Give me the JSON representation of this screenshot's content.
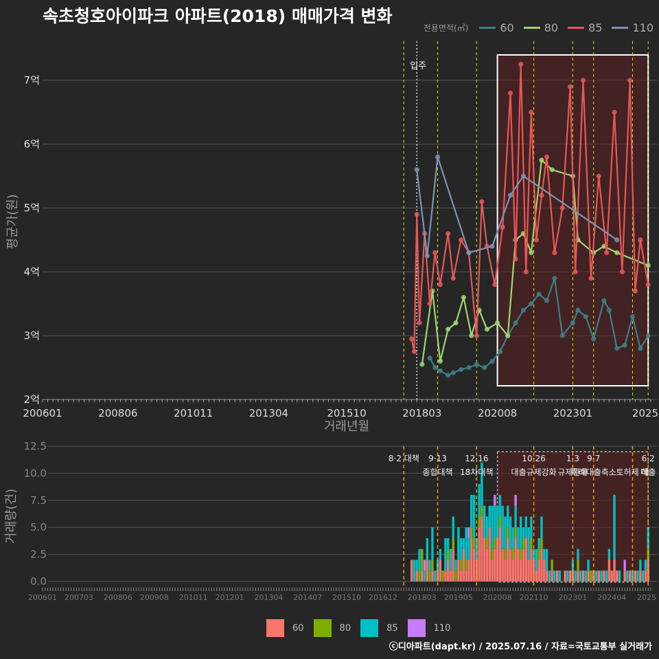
{
  "title": "속초청호아이파크 아파트(2018) 매매가격 변화",
  "legend": {
    "title": "전용면적(㎡)",
    "items": [
      {
        "label": "60",
        "line_color": "#3e7f86",
        "bar_color": "#f8766d"
      },
      {
        "label": "80",
        "line_color": "#9fd672",
        "bar_color": "#7cae00"
      },
      {
        "label": "85",
        "line_color": "#e85757",
        "bar_color": "#00bfc4"
      },
      {
        "label": "110",
        "line_color": "#7f92b4",
        "bar_color": "#c77cff"
      }
    ]
  },
  "credit": "ⓒ디아파트(dapt.kr) / 2025.07.16 / 자료=국토교통부 실거래가",
  "chart_data": [
    {
      "type": "line",
      "ylabel": "평균가(원)",
      "xlabel": "거래년월",
      "yticks": [
        "2억",
        "3억",
        "4억",
        "5억",
        "6억",
        "7억"
      ],
      "ylim": [
        2,
        7.5
      ],
      "xlim": [
        "2006-01",
        "2025-07"
      ],
      "xticks": [
        "200601",
        "200806",
        "201011",
        "201304",
        "201510",
        "201803",
        "202008",
        "202301",
        "2025"
      ],
      "move_in_label": "입주",
      "move_in": "2018-01",
      "highlight_range": [
        "2020-08",
        "2025-06"
      ],
      "policy_lines": [
        "2017-08",
        "2018-09",
        "2019-12",
        "2021-10",
        "2023-01",
        "2023-09",
        "2024-12",
        "2025-06"
      ],
      "series": [
        {
          "name": "60",
          "points": [
            [
              "2018-06",
              2.65
            ],
            [
              "2018-08",
              2.5
            ],
            [
              "2018-10",
              2.45
            ],
            [
              "2019-01",
              2.38
            ],
            [
              "2019-03",
              2.42
            ],
            [
              "2019-06",
              2.47
            ],
            [
              "2019-09",
              2.5
            ],
            [
              "2019-12",
              2.55
            ],
            [
              "2020-03",
              2.5
            ],
            [
              "2020-06",
              2.6
            ],
            [
              "2020-09",
              2.75
            ],
            [
              "2020-12",
              3.0
            ],
            [
              "2021-03",
              3.2
            ],
            [
              "2021-06",
              3.4
            ],
            [
              "2021-09",
              3.5
            ],
            [
              "2021-12",
              3.65
            ],
            [
              "2022-03",
              3.55
            ],
            [
              "2022-06",
              3.9
            ],
            [
              "2022-09",
              3.0
            ],
            [
              "2023-01",
              3.2
            ],
            [
              "2023-03",
              3.4
            ],
            [
              "2023-06",
              3.3
            ],
            [
              "2023-09",
              2.95
            ],
            [
              "2024-01",
              3.55
            ],
            [
              "2024-03",
              3.4
            ],
            [
              "2024-06",
              2.8
            ],
            [
              "2024-09",
              2.85
            ],
            [
              "2024-12",
              3.3
            ],
            [
              "2025-03",
              2.8
            ],
            [
              "2025-06",
              3.0
            ]
          ]
        },
        {
          "name": "80",
          "points": [
            [
              "2018-03",
              2.55
            ],
            [
              "2018-07",
              3.7
            ],
            [
              "2018-10",
              2.6
            ],
            [
              "2019-01",
              3.1
            ],
            [
              "2019-04",
              3.2
            ],
            [
              "2019-07",
              3.6
            ],
            [
              "2019-10",
              3.0
            ],
            [
              "2020-01",
              3.4
            ],
            [
              "2020-04",
              3.1
            ],
            [
              "2020-08",
              3.2
            ],
            [
              "2020-12",
              3.0
            ],
            [
              "2021-03",
              4.5
            ],
            [
              "2021-06",
              4.6
            ],
            [
              "2021-09",
              4.3
            ],
            [
              "2022-01",
              5.75
            ],
            [
              "2022-05",
              5.6
            ],
            [
              "2023-01",
              5.5
            ],
            [
              "2023-03",
              4.5
            ],
            [
              "2023-09",
              4.3
            ],
            [
              "2024-01",
              4.4
            ],
            [
              "2024-06",
              4.3
            ],
            [
              "2025-06",
              4.1
            ]
          ]
        },
        {
          "name": "85",
          "points": [
            [
              "2017-11",
              2.95
            ],
            [
              "2017-12",
              2.75
            ],
            [
              "2018-01",
              4.9
            ],
            [
              "2018-02",
              3.2
            ],
            [
              "2018-04",
              4.6
            ],
            [
              "2018-06",
              3.5
            ],
            [
              "2018-08",
              4.3
            ],
            [
              "2018-10",
              3.8
            ],
            [
              "2019-01",
              4.6
            ],
            [
              "2019-03",
              3.9
            ],
            [
              "2019-06",
              4.5
            ],
            [
              "2019-09",
              4.3
            ],
            [
              "2019-12",
              3.0
            ],
            [
              "2020-02",
              5.1
            ],
            [
              "2020-04",
              4.4
            ],
            [
              "2020-07",
              3.8
            ],
            [
              "2020-10",
              4.7
            ],
            [
              "2021-01",
              6.8
            ],
            [
              "2021-03",
              4.2
            ],
            [
              "2021-05",
              7.25
            ],
            [
              "2021-07",
              4.0
            ],
            [
              "2021-09",
              6.5
            ],
            [
              "2021-11",
              4.5
            ],
            [
              "2022-01",
              5.2
            ],
            [
              "2022-03",
              5.8
            ],
            [
              "2022-06",
              4.3
            ],
            [
              "2022-09",
              5.0
            ],
            [
              "2022-12",
              6.9
            ],
            [
              "2023-02",
              4.0
            ],
            [
              "2023-05",
              7.0
            ],
            [
              "2023-08",
              3.9
            ],
            [
              "2023-11",
              5.5
            ],
            [
              "2024-02",
              4.3
            ],
            [
              "2024-05",
              6.5
            ],
            [
              "2024-08",
              4.0
            ],
            [
              "2024-11",
              7.0
            ],
            [
              "2025-01",
              3.7
            ],
            [
              "2025-03",
              4.5
            ],
            [
              "2025-06",
              3.8
            ]
          ]
        },
        {
          "name": "110",
          "points": [
            [
              "2018-01",
              5.6
            ],
            [
              "2018-05",
              4.25
            ],
            [
              "2018-09",
              5.8
            ],
            [
              "2019-09",
              4.3
            ],
            [
              "2020-06",
              4.4
            ],
            [
              "2021-01",
              5.2
            ],
            [
              "2021-06",
              5.5
            ],
            [
              "2024-06",
              4.5
            ]
          ]
        }
      ]
    },
    {
      "type": "bar",
      "ylabel": "거래량(건)",
      "yticks": [
        "0.0",
        "2.5",
        "5.0",
        "7.5",
        "10.0",
        "12.5"
      ],
      "ylim": [
        0,
        12.5
      ],
      "xticks": [
        "200601",
        "200703",
        "200806",
        "200908",
        "201011",
        "201201",
        "201304",
        "201407",
        "201510",
        "201612",
        "201803",
        "201905",
        "202008",
        "202110",
        "202301",
        "202404",
        "2025"
      ],
      "policy_annotations": [
        {
          "date": "2017-08",
          "line1": "8·2 대책",
          "line2": ""
        },
        {
          "date": "2018-09",
          "line1": "9·13",
          "line2": "종합대책"
        },
        {
          "date": "2019-12",
          "line1": "12·16",
          "line2": "18차대책"
        },
        {
          "date": "2021-10",
          "line1": "10·26",
          "line2": "대출규제강화"
        },
        {
          "date": "2023-01",
          "line1": "1·3",
          "line2": "규제완화"
        },
        {
          "date": "2023-09",
          "line1": "9·7",
          "line2": "특례대출축소"
        },
        {
          "date": "2024-12",
          "line1": "",
          "line2": "토허제 해"
        },
        {
          "date": "2025-06",
          "line1": "6·2",
          "line2": "대출"
        }
      ],
      "series_totals_note": "monthly counts stacked by 전용면적",
      "monthly": [
        [
          "2017-11",
          2,
          0,
          0,
          0
        ],
        [
          "2017-12",
          0,
          0,
          2,
          0
        ],
        [
          "2018-01",
          1,
          0,
          1,
          0
        ],
        [
          "2018-02",
          0,
          1,
          2,
          0
        ],
        [
          "2018-03",
          1,
          2,
          0,
          0
        ],
        [
          "2018-04",
          0,
          0,
          1,
          1
        ],
        [
          "2018-05",
          2,
          0,
          2,
          0
        ],
        [
          "2018-06",
          0,
          1,
          1,
          0
        ],
        [
          "2018-07",
          1,
          1,
          3,
          0
        ],
        [
          "2018-08",
          0,
          0,
          1,
          0
        ],
        [
          "2018-09",
          1,
          0,
          1,
          0
        ],
        [
          "2018-10",
          2,
          0,
          1,
          0
        ],
        [
          "2018-11",
          0,
          1,
          0,
          0
        ],
        [
          "2018-12",
          1,
          0,
          3,
          0
        ],
        [
          "2019-01",
          2,
          1,
          1,
          0
        ],
        [
          "2019-02",
          1,
          0,
          2,
          0
        ],
        [
          "2019-03",
          3,
          1,
          2,
          0
        ],
        [
          "2019-04",
          0,
          1,
          1,
          0
        ],
        [
          "2019-05",
          2,
          0,
          3,
          0
        ],
        [
          "2019-06",
          1,
          1,
          2,
          0
        ],
        [
          "2019-07",
          3,
          0,
          1,
          0
        ],
        [
          "2019-08",
          1,
          1,
          3,
          0
        ],
        [
          "2019-09",
          2,
          0,
          2,
          1
        ],
        [
          "2019-10",
          4,
          1,
          3,
          0
        ],
        [
          "2019-11",
          3,
          1,
          4,
          0
        ],
        [
          "2019-12",
          2,
          0,
          2,
          0
        ],
        [
          "2020-01",
          5,
          1,
          3,
          0
        ],
        [
          "2020-02",
          6,
          1,
          4,
          0
        ],
        [
          "2020-03",
          4,
          0,
          3,
          0
        ],
        [
          "2020-04",
          3,
          1,
          2,
          0
        ],
        [
          "2020-05",
          5,
          0,
          2,
          0
        ],
        [
          "2020-06",
          2,
          1,
          4,
          0
        ],
        [
          "2020-07",
          3,
          1,
          3,
          1
        ],
        [
          "2020-08",
          4,
          0,
          3,
          0
        ],
        [
          "2020-09",
          5,
          1,
          2,
          0
        ],
        [
          "2020-10",
          3,
          0,
          4,
          0
        ],
        [
          "2020-11",
          2,
          1,
          3,
          0
        ],
        [
          "2020-12",
          4,
          1,
          2,
          0
        ],
        [
          "2021-01",
          3,
          0,
          3,
          0
        ],
        [
          "2021-02",
          2,
          1,
          2,
          0
        ],
        [
          "2021-03",
          4,
          1,
          2,
          1
        ],
        [
          "2021-04",
          3,
          0,
          2,
          0
        ],
        [
          "2021-05",
          2,
          1,
          3,
          0
        ],
        [
          "2021-06",
          3,
          1,
          1,
          0
        ],
        [
          "2021-07",
          4,
          0,
          2,
          0
        ],
        [
          "2021-08",
          2,
          0,
          3,
          0
        ],
        [
          "2021-09",
          3,
          1,
          2,
          0
        ],
        [
          "2021-10",
          2,
          0,
          1,
          0
        ],
        [
          "2021-11",
          1,
          0,
          2,
          0
        ],
        [
          "2021-12",
          2,
          1,
          1,
          0
        ],
        [
          "2022-01",
          3,
          1,
          2,
          0
        ],
        [
          "2022-02",
          2,
          0,
          1,
          0
        ],
        [
          "2022-03",
          1,
          0,
          2,
          0
        ],
        [
          "2022-04",
          0,
          0,
          1,
          0
        ],
        [
          "2022-05",
          1,
          1,
          0,
          0
        ],
        [
          "2022-06",
          0,
          0,
          1,
          0
        ],
        [
          "2022-07",
          1,
          0,
          0,
          0
        ],
        [
          "2022-08",
          0,
          0,
          1,
          0
        ],
        [
          "2022-09",
          0,
          0,
          0,
          0
        ],
        [
          "2022-10",
          1,
          0,
          0,
          0
        ],
        [
          "2022-11",
          0,
          0,
          1,
          0
        ],
        [
          "2022-12",
          1,
          0,
          0,
          0
        ],
        [
          "2023-01",
          1,
          0,
          1,
          0
        ],
        [
          "2023-02",
          0,
          0,
          1,
          0
        ],
        [
          "2023-03",
          1,
          1,
          1,
          0
        ],
        [
          "2023-04",
          0,
          0,
          1,
          0
        ],
        [
          "2023-05",
          1,
          0,
          0,
          0
        ],
        [
          "2023-06",
          0,
          0,
          1,
          0
        ],
        [
          "2023-07",
          1,
          0,
          1,
          0
        ],
        [
          "2023-08",
          0,
          1,
          0,
          0
        ],
        [
          "2023-09",
          1,
          0,
          0,
          0
        ],
        [
          "2023-10",
          0,
          0,
          1,
          0
        ],
        [
          "2023-11",
          1,
          0,
          0,
          0
        ],
        [
          "2023-12",
          0,
          0,
          1,
          0
        ],
        [
          "2024-01",
          1,
          0,
          0,
          0
        ],
        [
          "2024-02",
          0,
          0,
          1,
          0
        ],
        [
          "2024-03",
          2,
          0,
          1,
          0
        ],
        [
          "2024-04",
          1,
          0,
          0,
          0
        ],
        [
          "2024-05",
          2,
          0,
          6,
          0
        ],
        [
          "2024-06",
          1,
          0,
          0,
          0
        ],
        [
          "2024-07",
          0,
          0,
          1,
          0
        ],
        [
          "2024-08",
          0,
          0,
          0,
          0
        ],
        [
          "2024-09",
          1,
          0,
          0,
          1
        ],
        [
          "2024-10",
          0,
          0,
          1,
          0
        ],
        [
          "2024-11",
          1,
          0,
          0,
          0
        ],
        [
          "2024-12",
          0,
          0,
          1,
          0
        ],
        [
          "2025-01",
          1,
          0,
          0,
          0
        ],
        [
          "2025-02",
          0,
          0,
          1,
          0
        ],
        [
          "2025-03",
          1,
          0,
          1,
          0
        ],
        [
          "2025-04",
          0,
          0,
          1,
          0
        ],
        [
          "2025-05",
          1,
          0,
          1,
          0
        ],
        [
          "2025-06",
          2,
          1,
          2,
          0
        ]
      ]
    }
  ]
}
